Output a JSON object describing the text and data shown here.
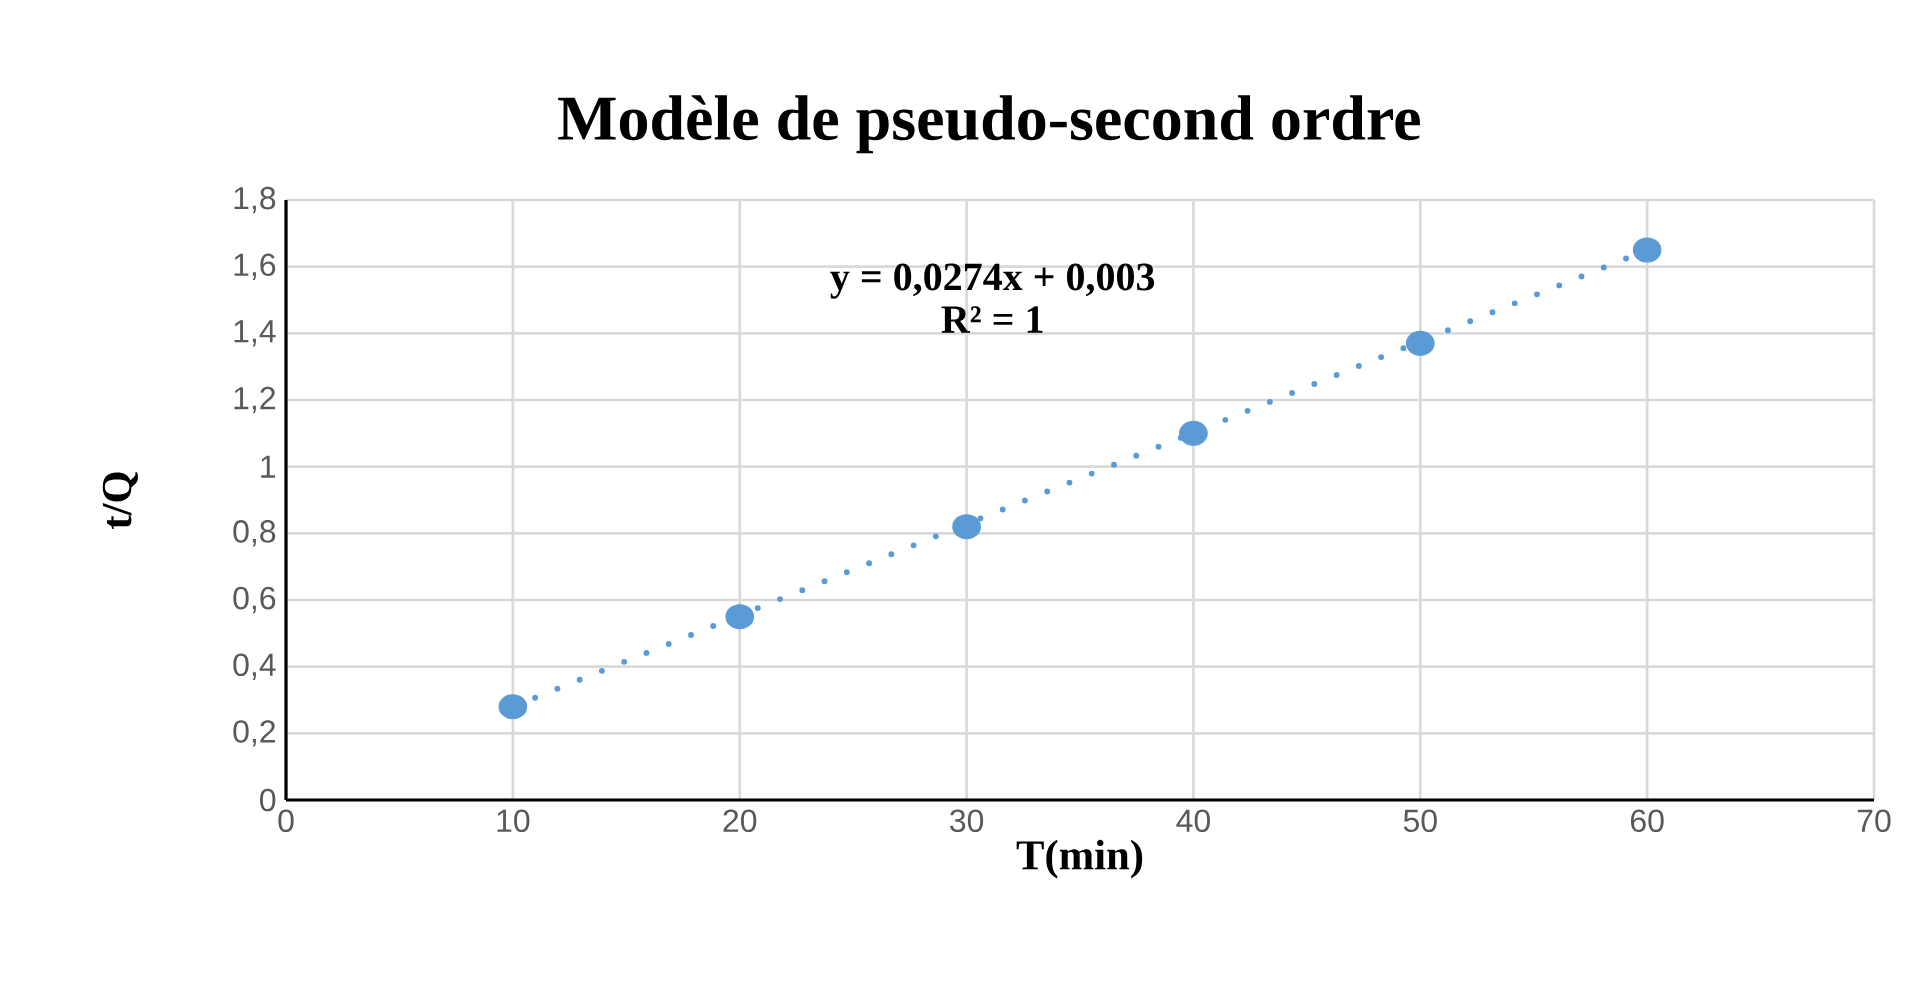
{
  "chart_data": {
    "type": "scatter",
    "title": "Modèle de pseudo-second ordre",
    "xlabel": "T(min)",
    "ylabel": "t/Q",
    "xlim": [
      0,
      70
    ],
    "xticks": [
      0,
      10,
      20,
      30,
      40,
      50,
      60,
      70
    ],
    "ylim": [
      0,
      1.8
    ],
    "yticks": [
      {
        "value": 0,
        "label": "0"
      },
      {
        "value": 0.2,
        "label": "0,2"
      },
      {
        "value": 0.4,
        "label": "0,4"
      },
      {
        "value": 0.6,
        "label": "0,6"
      },
      {
        "value": 0.8,
        "label": "0,8"
      },
      {
        "value": 1,
        "label": "1"
      },
      {
        "value": 1.2,
        "label": "1,2"
      },
      {
        "value": 1.4,
        "label": "1,4"
      },
      {
        "value": 1.6,
        "label": "1,6"
      },
      {
        "value": 1.8,
        "label": "1,8"
      }
    ],
    "grid": true,
    "annotations": [
      "y = 0,0274x + 0,003",
      "R² = 1"
    ],
    "series": [
      {
        "type": "scatter",
        "color": "#5b9bd5",
        "marker": "circle",
        "x": [
          10,
          20,
          30,
          40,
          50,
          60
        ],
        "values": [
          0.28,
          0.55,
          0.82,
          1.1,
          1.37,
          1.65
        ]
      },
      {
        "type": "line",
        "color": "#5b9bd5",
        "line_style": "dotted",
        "x": [
          10,
          60
        ],
        "values": [
          0.28,
          1.65
        ]
      }
    ]
  }
}
